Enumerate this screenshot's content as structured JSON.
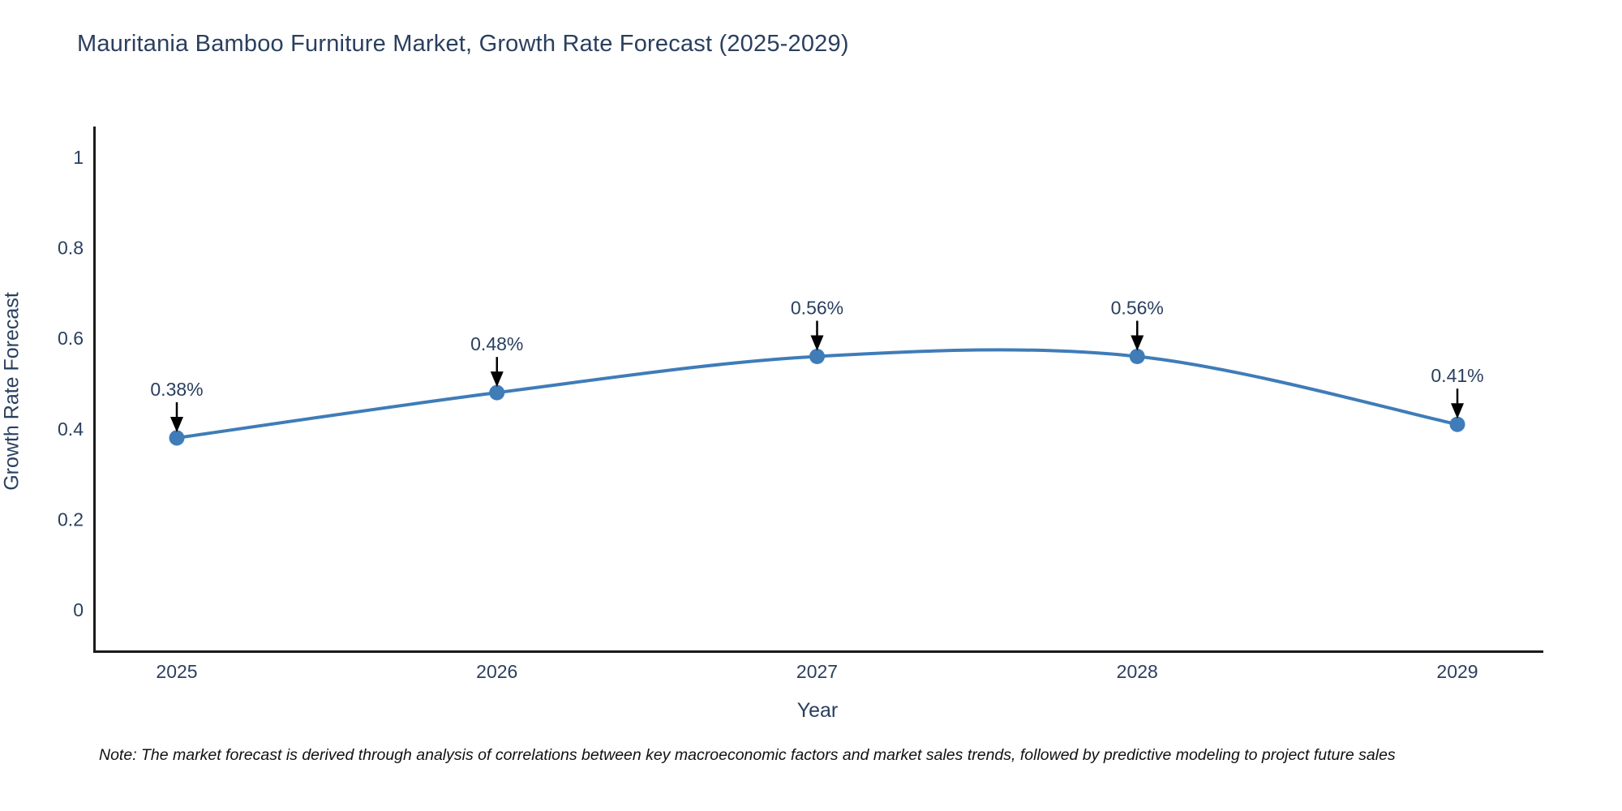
{
  "note": "Note: The market forecast is derived through analysis of correlations between key macroeconomic factors and market sales trends, followed by predictive modeling to project future sales",
  "chart_data": {
    "type": "line",
    "line_shape": "spline",
    "title": "Mauritania Bamboo Furniture Market, Growth Rate Forecast (2025-2029)",
    "xlabel": "Year",
    "ylabel": "Growth Rate Forecast",
    "categories": [
      "2025",
      "2026",
      "2027",
      "2028",
      "2029"
    ],
    "values": [
      0.38,
      0.48,
      0.56,
      0.56,
      0.41
    ],
    "point_labels": [
      "0.38%",
      "0.48%",
      "0.56%",
      "0.56%",
      "0.41%"
    ],
    "ytick_values": [
      0,
      0.2,
      0.4,
      0.6,
      0.8,
      1
    ],
    "ytick_labels": [
      "0",
      "0.2",
      "0.4",
      "0.6",
      "0.8",
      "1"
    ],
    "ylim": [
      -0.09,
      1.07
    ],
    "grid": false,
    "legend": false,
    "markers": true,
    "annotation_arrows": true,
    "colors": {
      "line": "#3f7cb8",
      "marker": "#3f7cb8",
      "axis": "#1a1a1a",
      "text": "#2a3f5f",
      "annotation_arrow": "#000000",
      "background": "#ffffff"
    }
  }
}
